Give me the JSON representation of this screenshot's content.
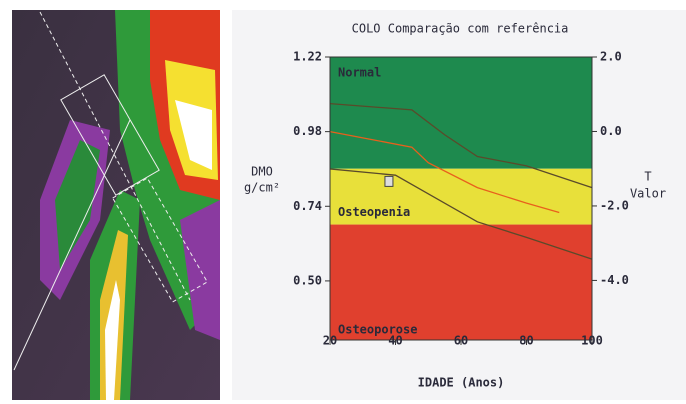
{
  "chart_data": {
    "type": "line",
    "title": "COLO Comparação com referência",
    "ylabel": [
      "DMO",
      "g/cm²"
    ],
    "y2label": [
      "T",
      "Valor"
    ],
    "xlabel": "IDADE (Anos)",
    "xlim": [
      20,
      100
    ],
    "xticks": [
      20,
      40,
      60,
      80,
      100
    ],
    "ylim": [
      0.31,
      1.22
    ],
    "yticks": [
      {
        "value": 0.5,
        "label": "0.50"
      },
      {
        "value": 0.74,
        "label": "0.74"
      },
      {
        "value": 0.98,
        "label": "0.98"
      },
      {
        "value": 1.22,
        "label": "1.22"
      }
    ],
    "y2lim": [
      -5.6,
      2.0
    ],
    "y2ticks": [
      {
        "value": 2.0,
        "label": "2.0"
      },
      {
        "value": 0.0,
        "label": "0.0"
      },
      {
        "value": -2.0,
        "label": "-2.0"
      },
      {
        "value": -4.0,
        "label": "-4.0"
      }
    ],
    "zones": [
      {
        "label": "Normal",
        "range": [
          -1.0,
          2.0
        ],
        "color": "#1e8a4e"
      },
      {
        "label": "Osteopenia",
        "range": [
          -2.5,
          -1.0
        ],
        "color": "#e8e03a"
      },
      {
        "label": "Osteoporose",
        "range": [
          -5.6,
          -2.5
        ],
        "color": "#e0402e"
      }
    ],
    "series": [
      {
        "color": "#5a4a2a",
        "x": [
          20,
          45,
          55,
          65,
          80,
          100
        ],
        "values": [
          1.07,
          1.05,
          0.97,
          0.9,
          0.87,
          0.8
        ]
      },
      {
        "color": "#e8601c",
        "x": [
          20,
          30,
          45,
          50,
          65,
          80,
          90
        ],
        "values": [
          0.98,
          0.96,
          0.93,
          0.88,
          0.8,
          0.75,
          0.72
        ]
      },
      {
        "color": "#5a4a2a",
        "x": [
          20,
          40,
          50,
          65,
          80,
          100
        ],
        "values": [
          0.86,
          0.84,
          0.78,
          0.69,
          0.64,
          0.57
        ]
      }
    ],
    "patient": {
      "x": [
        38
      ],
      "values": [
        0.82
      ],
      "color": "#dddddd"
    }
  }
}
